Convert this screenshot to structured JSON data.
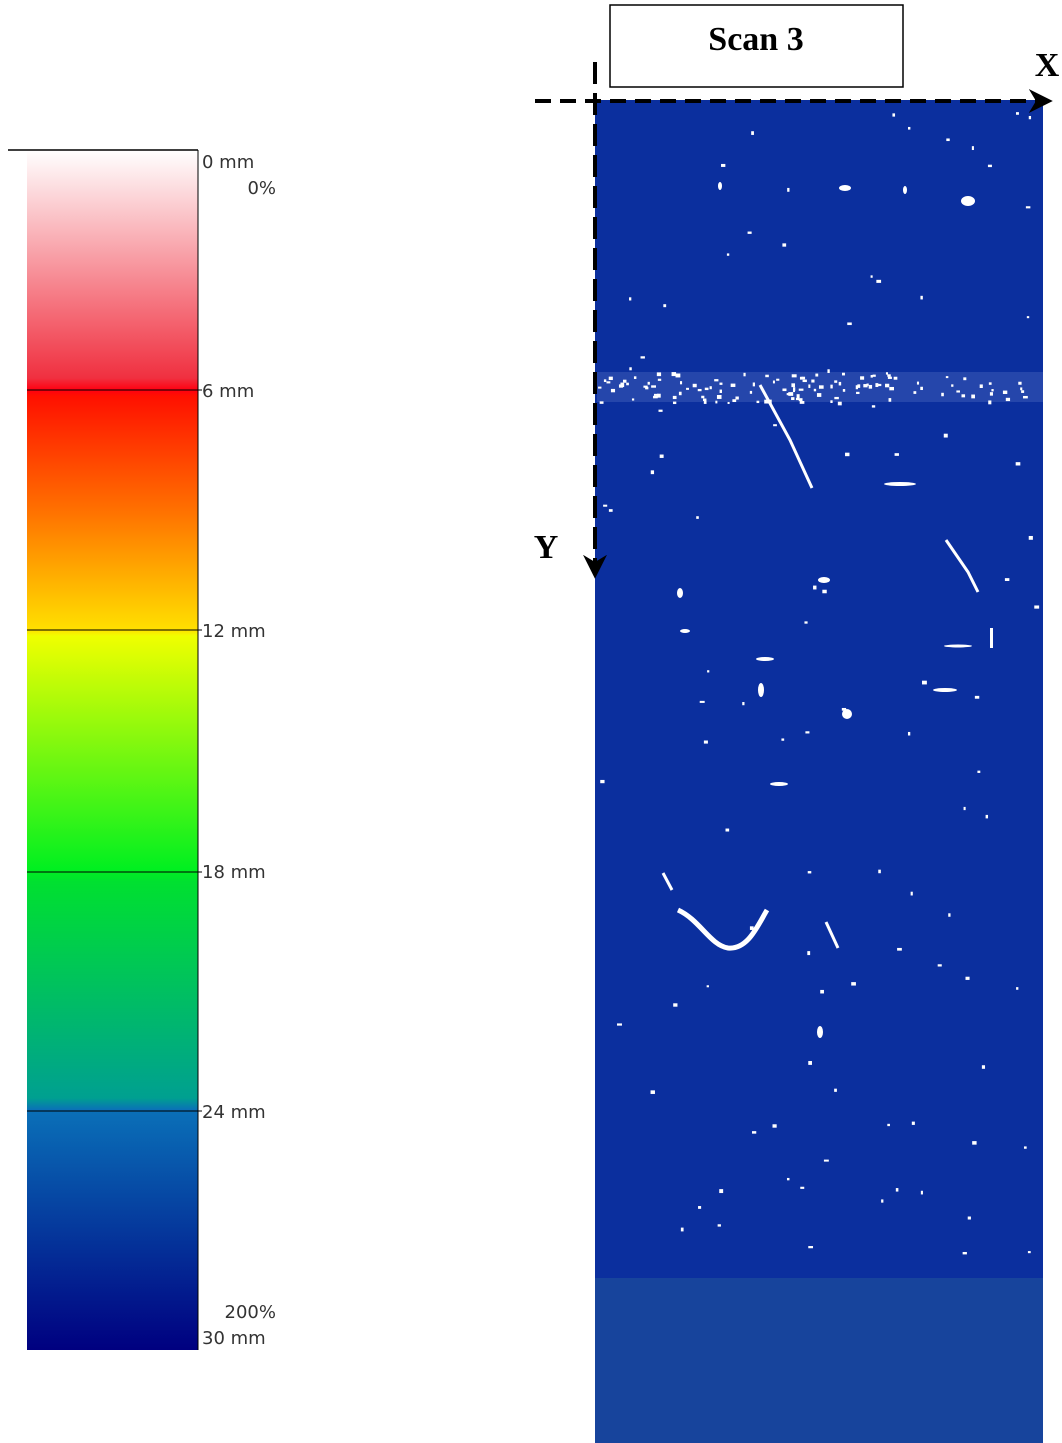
{
  "scan": {
    "title": "Scan 3",
    "x_label": "X",
    "y_label": "Y"
  },
  "colorbar": {
    "labels": [
      "0 mm",
      "0%",
      "6 mm",
      "12 mm",
      "18 mm",
      "24 mm",
      "200%",
      "30 mm"
    ]
  }
}
